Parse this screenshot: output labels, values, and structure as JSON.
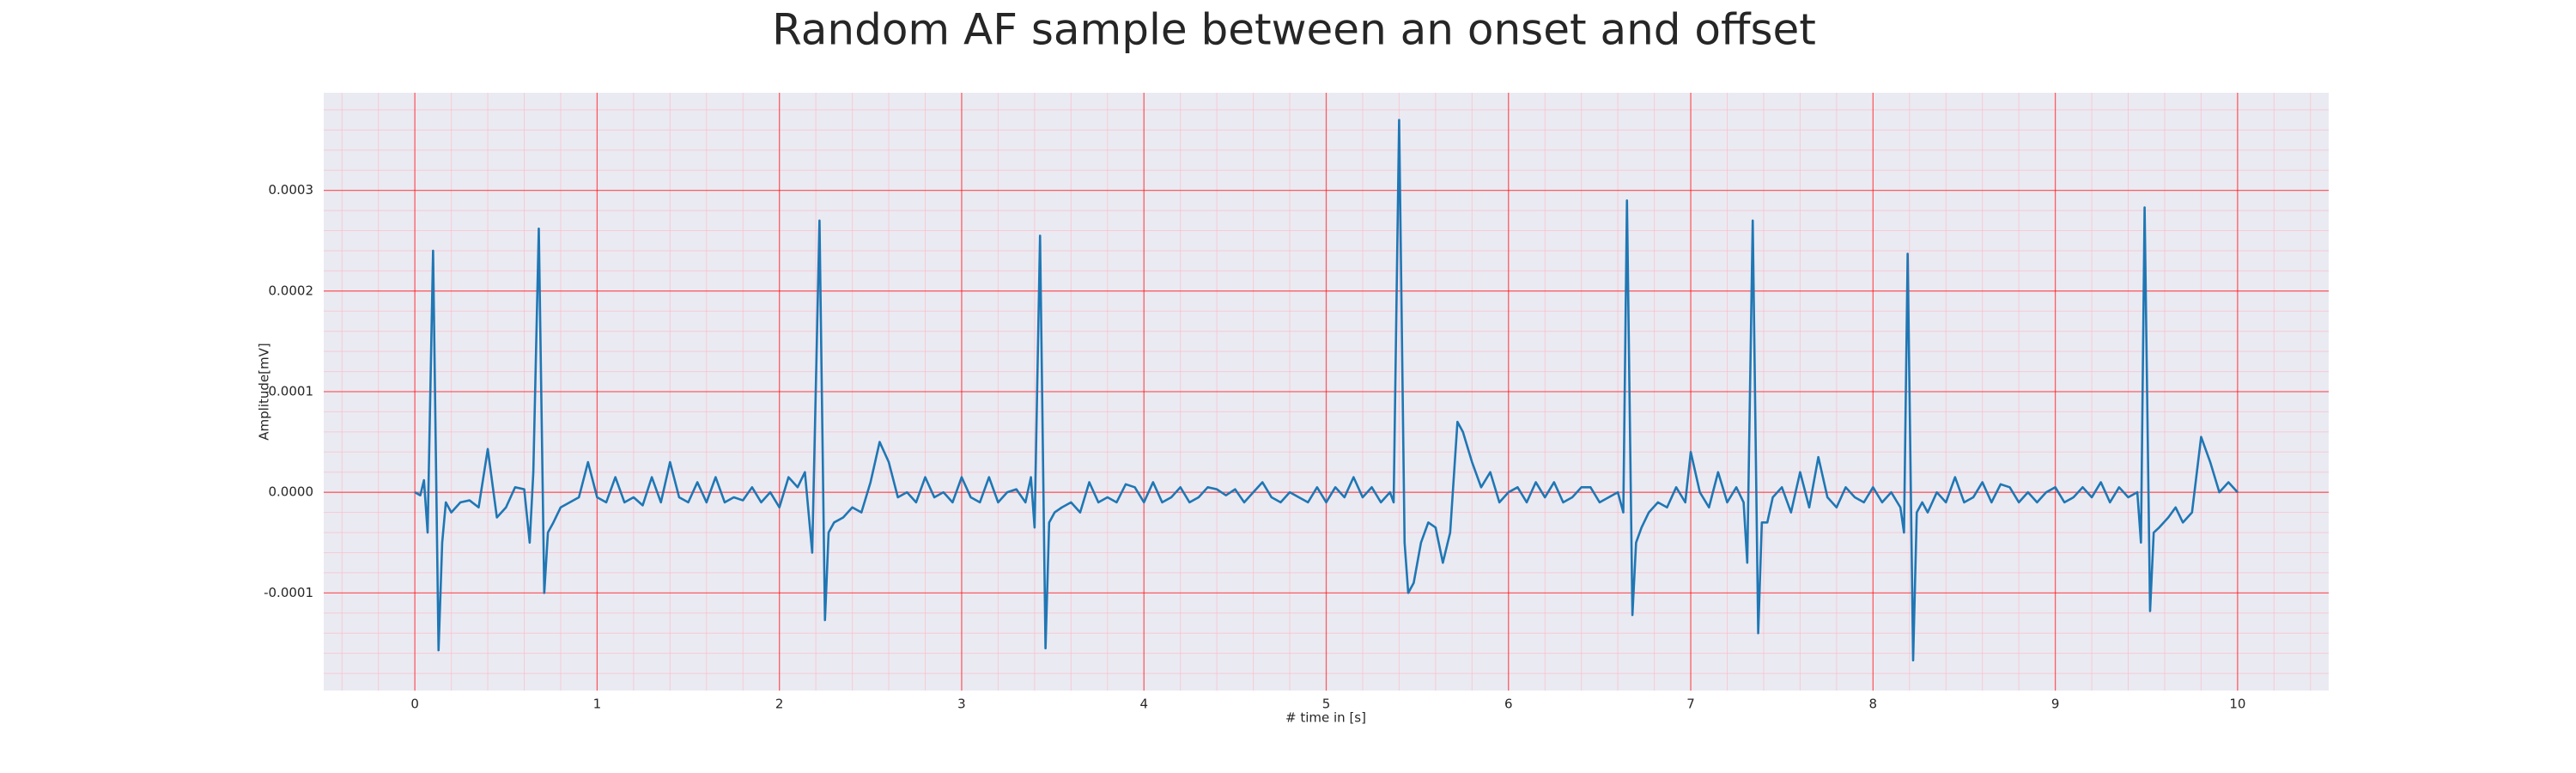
{
  "chart_data": {
    "type": "line",
    "title": "Random AF sample between an onset and offset",
    "xlabel": "# time in [s]",
    "ylabel": "Amplitude[mV]",
    "color": "#1f77b4",
    "grid": true,
    "minor_grid": true,
    "xlim": [
      -0.5,
      10.5
    ],
    "ylim": [
      -0.000197,
      0.000397
    ],
    "xticks": [
      0,
      1,
      2,
      3,
      4,
      5,
      6,
      7,
      8,
      9,
      10
    ],
    "yticks": [
      {
        "value": -0.0001,
        "label": "-0.0001"
      },
      {
        "value": 0,
        "label": "0.0000"
      },
      {
        "value": 0.0001,
        "label": "0.0001"
      },
      {
        "value": 0.0002,
        "label": "0.0002"
      },
      {
        "value": 0.0003,
        "label": "0.0003"
      }
    ],
    "x": [
      0,
      0.03,
      0.05,
      0.07,
      0.1,
      0.13,
      0.15,
      0.17,
      0.2,
      0.25,
      0.3,
      0.35,
      0.4,
      0.45,
      0.5,
      0.55,
      0.6,
      0.63,
      0.65,
      0.68,
      0.71,
      0.73,
      0.76,
      0.8,
      0.85,
      0.9,
      0.95,
      1,
      1.05,
      1.1,
      1.15,
      1.2,
      1.25,
      1.3,
      1.35,
      1.4,
      1.45,
      1.5,
      1.55,
      1.6,
      1.65,
      1.7,
      1.75,
      1.8,
      1.85,
      1.9,
      1.95,
      2,
      2.05,
      2.1,
      2.14,
      2.18,
      2.22,
      2.25,
      2.27,
      2.3,
      2.35,
      2.4,
      2.45,
      2.5,
      2.55,
      2.6,
      2.65,
      2.7,
      2.75,
      2.8,
      2.85,
      2.9,
      2.95,
      3,
      3.05,
      3.1,
      3.15,
      3.2,
      3.25,
      3.3,
      3.35,
      3.38,
      3.4,
      3.43,
      3.46,
      3.48,
      3.51,
      3.55,
      3.6,
      3.65,
      3.7,
      3.75,
      3.8,
      3.85,
      3.9,
      3.95,
      4,
      4.05,
      4.1,
      4.15,
      4.2,
      4.25,
      4.3,
      4.35,
      4.4,
      4.45,
      4.5,
      4.55,
      4.6,
      4.65,
      4.7,
      4.75,
      4.8,
      4.85,
      4.9,
      4.95,
      5,
      5.05,
      5.1,
      5.15,
      5.2,
      5.25,
      5.3,
      5.35,
      5.37,
      5.4,
      5.43,
      5.45,
      5.48,
      5.52,
      5.56,
      5.6,
      5.64,
      5.68,
      5.72,
      5.75,
      5.8,
      5.85,
      5.9,
      5.95,
      6,
      6.05,
      6.1,
      6.15,
      6.2,
      6.25,
      6.3,
      6.35,
      6.4,
      6.45,
      6.5,
      6.55,
      6.6,
      6.63,
      6.65,
      6.68,
      6.7,
      6.73,
      6.77,
      6.82,
      6.87,
      6.92,
      6.97,
      7,
      7.05,
      7.1,
      7.15,
      7.2,
      7.25,
      7.29,
      7.31,
      7.34,
      7.37,
      7.39,
      7.42,
      7.45,
      7.5,
      7.55,
      7.6,
      7.65,
      7.7,
      7.75,
      7.8,
      7.85,
      7.9,
      7.95,
      8,
      8.05,
      8.1,
      8.15,
      8.17,
      8.19,
      8.22,
      8.24,
      8.27,
      8.3,
      8.35,
      8.4,
      8.45,
      8.5,
      8.55,
      8.6,
      8.65,
      8.7,
      8.75,
      8.8,
      8.85,
      8.9,
      8.95,
      9,
      9.05,
      9.1,
      9.15,
      9.2,
      9.25,
      9.3,
      9.35,
      9.4,
      9.45,
      9.47,
      9.49,
      9.52,
      9.54,
      9.57,
      9.62,
      9.66,
      9.7,
      9.75,
      9.8,
      9.85,
      9.9,
      9.95,
      10
    ],
    "values": [
      0,
      -3e-06,
      1.2e-05,
      -4e-05,
      0.00024,
      -0.000157,
      -5e-05,
      -1e-05,
      -2e-05,
      -1e-05,
      -8e-06,
      -1.5e-05,
      4.3e-05,
      -2.5e-05,
      -1.5e-05,
      5e-06,
      3e-06,
      -5e-05,
      2e-05,
      0.000262,
      -0.0001,
      -4e-05,
      -3e-05,
      -1.5e-05,
      -1e-05,
      -5e-06,
      3e-05,
      -5e-06,
      -1e-05,
      1.5e-05,
      -1e-05,
      -5e-06,
      -1.3e-05,
      1.5e-05,
      -1e-05,
      3e-05,
      -5e-06,
      -1e-05,
      1e-05,
      -1e-05,
      1.5e-05,
      -1e-05,
      -5e-06,
      -8e-06,
      5e-06,
      -1e-05,
      0,
      -1.5e-05,
      1.5e-05,
      5e-06,
      2e-05,
      -6e-05,
      0.00027,
      -0.000127,
      -4e-05,
      -3e-05,
      -2.5e-05,
      -1.5e-05,
      -2e-05,
      1e-05,
      5e-05,
      3e-05,
      -5e-06,
      0,
      -1e-05,
      1.5e-05,
      -5e-06,
      0,
      -1e-05,
      1.5e-05,
      -5e-06,
      -1e-05,
      1.5e-05,
      -1e-05,
      0,
      3e-06,
      -1e-05,
      1.5e-05,
      -3.5e-05,
      0.000255,
      -0.000155,
      -3e-05,
      -2e-05,
      -1.5e-05,
      -1e-05,
      -2e-05,
      1e-05,
      -1e-05,
      -5e-06,
      -1e-05,
      8e-06,
      5e-06,
      -1e-05,
      1e-05,
      -1e-05,
      -5e-06,
      5e-06,
      -1e-05,
      -5e-06,
      5e-06,
      3e-06,
      -3e-06,
      3e-06,
      -1e-05,
      0,
      1e-05,
      -5e-06,
      -1e-05,
      0,
      -5e-06,
      -1e-05,
      5e-06,
      -1e-05,
      5e-06,
      -5e-06,
      1.5e-05,
      -5e-06,
      5e-06,
      -1e-05,
      0,
      -1e-05,
      0.00037,
      -5e-05,
      -0.0001,
      -9e-05,
      -5e-05,
      -3e-05,
      -3.5e-05,
      -7e-05,
      -4e-05,
      7e-05,
      6e-05,
      3e-05,
      5e-06,
      2e-05,
      -1e-05,
      0,
      5e-06,
      -1e-05,
      1e-05,
      -5e-06,
      1e-05,
      -1e-05,
      -5e-06,
      5e-06,
      5e-06,
      -1e-05,
      -5e-06,
      0,
      -2e-05,
      0.00029,
      -0.000122,
      -5e-05,
      -3.5e-05,
      -2e-05,
      -1e-05,
      -1.5e-05,
      5e-06,
      -1e-05,
      4e-05,
      0,
      -1.5e-05,
      2e-05,
      -1e-05,
      5e-06,
      -1e-05,
      -7e-05,
      0.00027,
      -0.00014,
      -3e-05,
      -3e-05,
      -5e-06,
      5e-06,
      -2e-05,
      2e-05,
      -1.5e-05,
      3.5e-05,
      -5e-06,
      -1.5e-05,
      5e-06,
      -5e-06,
      -1e-05,
      5e-06,
      -1e-05,
      0,
      -1.5e-05,
      -4e-05,
      0.000237,
      -0.000167,
      -2e-05,
      -1e-05,
      -2e-05,
      0,
      -1e-05,
      1.5e-05,
      -1e-05,
      -5e-06,
      1e-05,
      -1e-05,
      8e-06,
      5e-06,
      -1e-05,
      0,
      -1e-05,
      0,
      5e-06,
      -1e-05,
      -5e-06,
      5e-06,
      -5e-06,
      1e-05,
      -1e-05,
      5e-06,
      -5e-06,
      0,
      -5e-05,
      0.000283,
      -0.000118,
      -4e-05,
      -3.5e-05,
      -2.5e-05,
      -1.5e-05,
      -3e-05,
      -2e-05,
      5.5e-05,
      3e-05,
      0,
      1e-05,
      0
    ]
  }
}
